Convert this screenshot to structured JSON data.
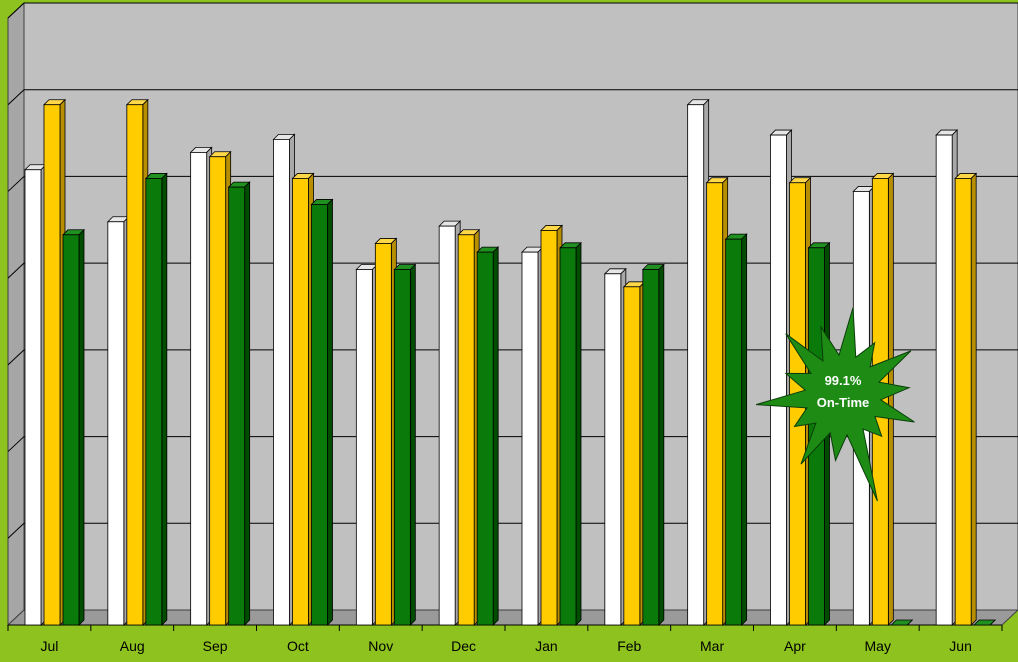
{
  "chart_data": {
    "type": "bar",
    "categories": [
      "Jul",
      "Aug",
      "Sep",
      "Oct",
      "Nov",
      "Dec",
      "Jan",
      "Feb",
      "Mar",
      "Apr",
      "May",
      "Jun"
    ],
    "series": [
      {
        "values": [
          52.5,
          46.5,
          54.5,
          56.0,
          41.0,
          46.0,
          43.0,
          40.5,
          60.0,
          56.5,
          50.0,
          56.5
        ]
      },
      {
        "values": [
          60.0,
          60.0,
          54.0,
          51.5,
          44.0,
          45.0,
          45.5,
          39.0,
          51.0,
          51.0,
          51.5,
          51.5
        ]
      },
      {
        "values": [
          45.0,
          51.5,
          50.5,
          48.5,
          41.0,
          43.0,
          43.5,
          41.0,
          44.5,
          43.5,
          0,
          0
        ]
      }
    ],
    "colors": [
      "#ffffff",
      "#ffcc00",
      "#007800"
    ],
    "ylim": [
      0,
      70
    ],
    "grid": true,
    "legend": "none",
    "annotation": {
      "line1": "99.1%",
      "line2": "On-Time",
      "shape": "starburst",
      "color": "#1e8c14"
    }
  }
}
